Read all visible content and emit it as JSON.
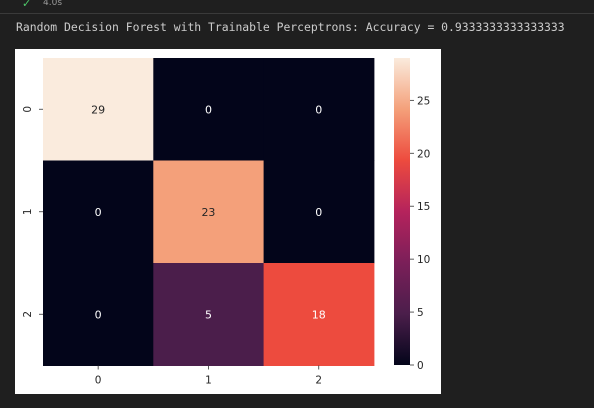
{
  "cell": {
    "status_time": "4.0s",
    "output_text": "Random Decision Forest with Trainable Perceptrons: Accuracy = 0.9333333333333333"
  },
  "chart_data": {
    "type": "heatmap",
    "x_labels": [
      "0",
      "1",
      "2"
    ],
    "y_labels": [
      "0",
      "1",
      "2"
    ],
    "values": [
      [
        29,
        0,
        0
      ],
      [
        0,
        23,
        0
      ],
      [
        0,
        5,
        18
      ]
    ],
    "annot_colors": [
      [
        "#262626",
        "#ffffff",
        "#ffffff"
      ],
      [
        "#ffffff",
        "#262626",
        "#ffffff"
      ],
      [
        "#ffffff",
        "#ffffff",
        "#ffffff"
      ]
    ],
    "cell_colors": [
      [
        "#faebdd",
        "#03051a",
        "#03051a"
      ],
      [
        "#03051a",
        "#f4a07a",
        "#03051a"
      ],
      [
        "#03051a",
        "#4b1e4b",
        "#ed4b3e"
      ]
    ],
    "colorbar": {
      "min": 0,
      "max": 29,
      "ticks": [
        0,
        5,
        10,
        15,
        20,
        25
      ],
      "stops": [
        "#03051a",
        "#4b1e4b",
        "#7b1f59",
        "#b5235c",
        "#ed4b3e",
        "#f4a07a",
        "#faebdd"
      ]
    },
    "xlabel": "",
    "ylabel": "",
    "title": ""
  }
}
